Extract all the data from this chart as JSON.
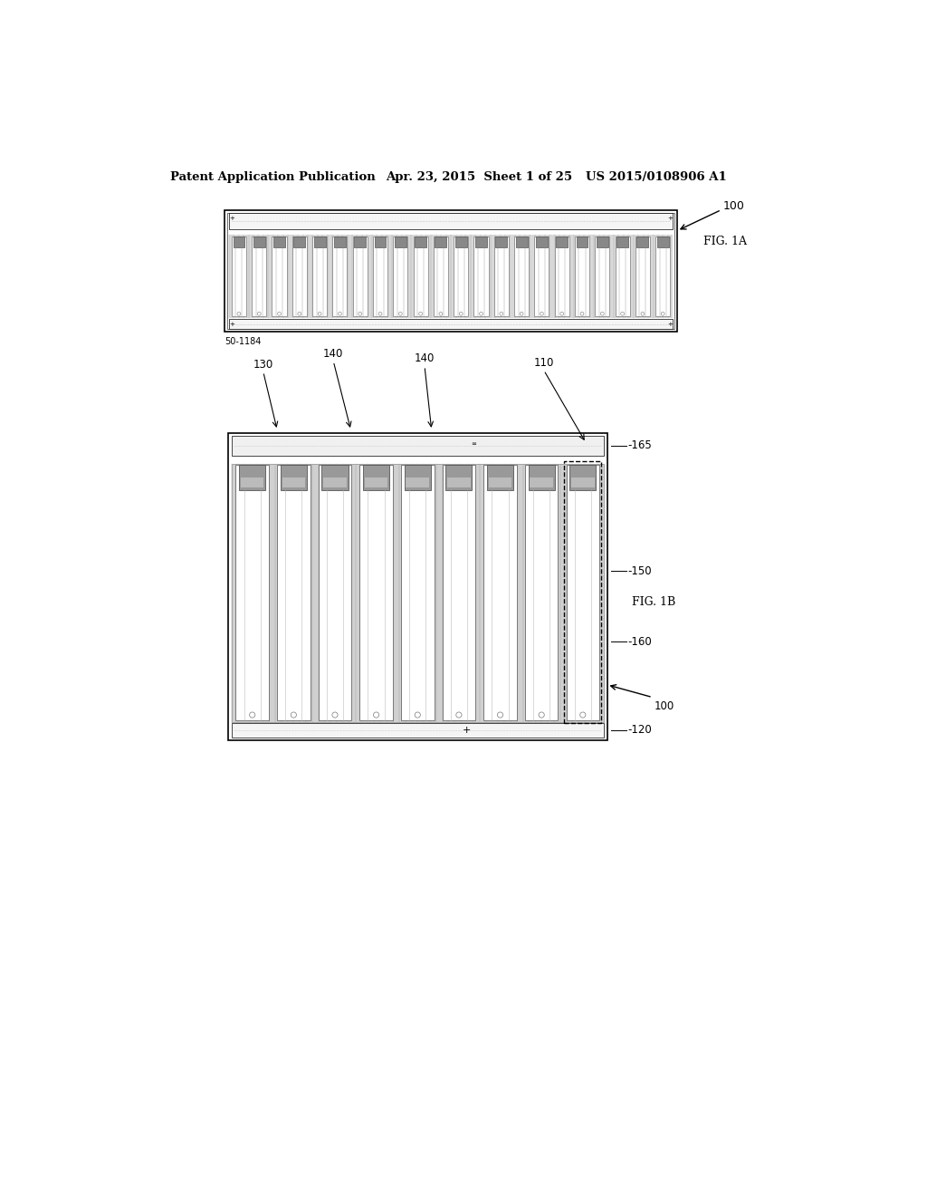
{
  "bg_color": "#ffffff",
  "header_text": "Patent Application Publication",
  "header_date": "Apr. 23, 2015  Sheet 1 of 25",
  "header_patent": "US 2015/0108906 A1",
  "fig1a_label": "FIG. 1A",
  "fig1b_label": "FIG. 1B",
  "ref_100": "100",
  "ref_110": "110",
  "ref_120": "120",
  "ref_130": "130",
  "ref_140a": "140",
  "ref_140b": "140",
  "ref_150": "150",
  "ref_160": "160",
  "ref_165": "165",
  "watermark": "50-1184",
  "num_slots_1a": 22,
  "num_slots_1b": 9,
  "line_color": "#000000",
  "mid_gray": "#888888",
  "slot_gray": "#cccccc",
  "connector_gray": "#aaaaaa"
}
